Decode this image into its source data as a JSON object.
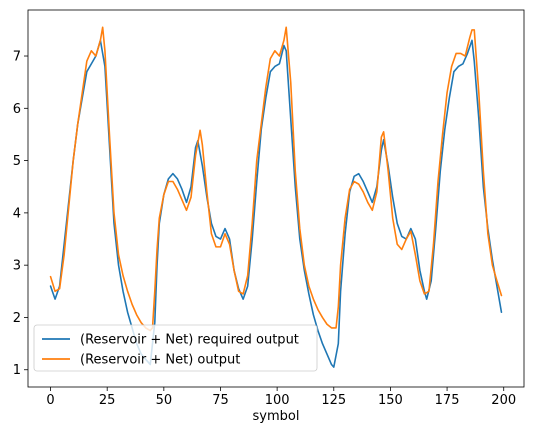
{
  "chart_data": {
    "type": "line",
    "title": "",
    "xlabel": "symbol",
    "ylabel": "",
    "xlim": [
      -9.95,
      208.95
    ],
    "ylim": [
      0.67,
      7.88
    ],
    "xticks": [
      0,
      25,
      50,
      75,
      100,
      125,
      150,
      175,
      200
    ],
    "yticks": [
      1,
      2,
      3,
      4,
      5,
      6,
      7
    ],
    "grid": false,
    "legend_position": "lower-left",
    "series": [
      {
        "name": "(Reservoir + Net) required output",
        "color": "#1f77b4",
        "points": [
          [
            0,
            2.6
          ],
          [
            2,
            2.35
          ],
          [
            4,
            2.6
          ],
          [
            6,
            3.4
          ],
          [
            8,
            4.2
          ],
          [
            10,
            5.0
          ],
          [
            12,
            5.7
          ],
          [
            14,
            6.2
          ],
          [
            16,
            6.7
          ],
          [
            18,
            6.85
          ],
          [
            20,
            7.0
          ],
          [
            22,
            7.3
          ],
          [
            24,
            6.8
          ],
          [
            26,
            5.3
          ],
          [
            28,
            3.8
          ],
          [
            30,
            3.0
          ],
          [
            32,
            2.5
          ],
          [
            34,
            2.1
          ],
          [
            36,
            1.8
          ],
          [
            38,
            1.5
          ],
          [
            40,
            1.3
          ],
          [
            42,
            1.2
          ],
          [
            44,
            1.1
          ],
          [
            46,
            1.9
          ],
          [
            47,
            3.0
          ],
          [
            48,
            3.8
          ],
          [
            50,
            4.35
          ],
          [
            52,
            4.65
          ],
          [
            54,
            4.75
          ],
          [
            56,
            4.65
          ],
          [
            58,
            4.45
          ],
          [
            60,
            4.2
          ],
          [
            62,
            4.5
          ],
          [
            64,
            5.25
          ],
          [
            65,
            5.38
          ],
          [
            67,
            4.9
          ],
          [
            69,
            4.3
          ],
          [
            71,
            3.8
          ],
          [
            73,
            3.55
          ],
          [
            75,
            3.5
          ],
          [
            77,
            3.7
          ],
          [
            79,
            3.5
          ],
          [
            81,
            2.9
          ],
          [
            83,
            2.55
          ],
          [
            85,
            2.35
          ],
          [
            87,
            2.6
          ],
          [
            89,
            3.5
          ],
          [
            91,
            4.6
          ],
          [
            93,
            5.6
          ],
          [
            95,
            6.2
          ],
          [
            97,
            6.7
          ],
          [
            99,
            6.8
          ],
          [
            101,
            6.85
          ],
          [
            103,
            7.2
          ],
          [
            104,
            7.1
          ],
          [
            106,
            5.8
          ],
          [
            108,
            4.5
          ],
          [
            110,
            3.5
          ],
          [
            112,
            2.9
          ],
          [
            114,
            2.45
          ],
          [
            116,
            2.05
          ],
          [
            118,
            1.75
          ],
          [
            120,
            1.5
          ],
          [
            122,
            1.3
          ],
          [
            124,
            1.1
          ],
          [
            125,
            1.05
          ],
          [
            127,
            1.5
          ],
          [
            128,
            2.5
          ],
          [
            130,
            3.6
          ],
          [
            132,
            4.4
          ],
          [
            134,
            4.7
          ],
          [
            136,
            4.75
          ],
          [
            138,
            4.6
          ],
          [
            140,
            4.4
          ],
          [
            142,
            4.2
          ],
          [
            144,
            4.5
          ],
          [
            146,
            5.2
          ],
          [
            147,
            5.4
          ],
          [
            149,
            4.9
          ],
          [
            151,
            4.3
          ],
          [
            153,
            3.8
          ],
          [
            155,
            3.55
          ],
          [
            157,
            3.5
          ],
          [
            159,
            3.7
          ],
          [
            161,
            3.5
          ],
          [
            163,
            2.9
          ],
          [
            165,
            2.5
          ],
          [
            166,
            2.35
          ],
          [
            168,
            2.7
          ],
          [
            170,
            3.7
          ],
          [
            172,
            4.8
          ],
          [
            174,
            5.6
          ],
          [
            176,
            6.2
          ],
          [
            178,
            6.7
          ],
          [
            180,
            6.8
          ],
          [
            182,
            6.85
          ],
          [
            184,
            7.05
          ],
          [
            186,
            7.3
          ],
          [
            187,
            6.9
          ],
          [
            189,
            5.8
          ],
          [
            191,
            4.5
          ],
          [
            193,
            3.7
          ],
          [
            195,
            3.1
          ],
          [
            197,
            2.6
          ],
          [
            199,
            2.1
          ]
        ]
      },
      {
        "name": "(Reservoir + Net) output",
        "color": "#ff7f0e",
        "points": [
          [
            0,
            2.78
          ],
          [
            2,
            2.5
          ],
          [
            4,
            2.55
          ],
          [
            6,
            3.2
          ],
          [
            8,
            4.1
          ],
          [
            10,
            5.0
          ],
          [
            12,
            5.7
          ],
          [
            14,
            6.3
          ],
          [
            16,
            6.9
          ],
          [
            18,
            7.1
          ],
          [
            20,
            7.0
          ],
          [
            22,
            7.3
          ],
          [
            23,
            7.55
          ],
          [
            24,
            7.1
          ],
          [
            26,
            5.5
          ],
          [
            28,
            4.0
          ],
          [
            30,
            3.2
          ],
          [
            32,
            2.8
          ],
          [
            34,
            2.5
          ],
          [
            36,
            2.25
          ],
          [
            38,
            2.05
          ],
          [
            40,
            1.9
          ],
          [
            42,
            1.8
          ],
          [
            44,
            1.75
          ],
          [
            45,
            1.8
          ],
          [
            46,
            2.5
          ],
          [
            47,
            3.3
          ],
          [
            48,
            3.9
          ],
          [
            50,
            4.35
          ],
          [
            52,
            4.6
          ],
          [
            54,
            4.6
          ],
          [
            56,
            4.45
          ],
          [
            58,
            4.25
          ],
          [
            60,
            4.05
          ],
          [
            62,
            4.3
          ],
          [
            64,
            5.1
          ],
          [
            66,
            5.58
          ],
          [
            67,
            5.3
          ],
          [
            69,
            4.4
          ],
          [
            71,
            3.6
          ],
          [
            73,
            3.35
          ],
          [
            75,
            3.35
          ],
          [
            77,
            3.6
          ],
          [
            79,
            3.4
          ],
          [
            81,
            2.9
          ],
          [
            83,
            2.5
          ],
          [
            85,
            2.45
          ],
          [
            87,
            2.8
          ],
          [
            89,
            3.8
          ],
          [
            91,
            5.0
          ],
          [
            93,
            5.7
          ],
          [
            95,
            6.4
          ],
          [
            97,
            6.95
          ],
          [
            99,
            7.1
          ],
          [
            101,
            7.0
          ],
          [
            103,
            7.3
          ],
          [
            104,
            7.55
          ],
          [
            106,
            6.5
          ],
          [
            108,
            4.8
          ],
          [
            110,
            3.7
          ],
          [
            112,
            3.0
          ],
          [
            114,
            2.6
          ],
          [
            116,
            2.35
          ],
          [
            118,
            2.15
          ],
          [
            120,
            2.0
          ],
          [
            122,
            1.87
          ],
          [
            124,
            1.8
          ],
          [
            126,
            1.8
          ],
          [
            127,
            2.2
          ],
          [
            128,
            3.0
          ],
          [
            130,
            3.9
          ],
          [
            132,
            4.45
          ],
          [
            134,
            4.6
          ],
          [
            136,
            4.55
          ],
          [
            138,
            4.4
          ],
          [
            140,
            4.2
          ],
          [
            142,
            4.05
          ],
          [
            144,
            4.4
          ],
          [
            146,
            5.45
          ],
          [
            147,
            5.55
          ],
          [
            149,
            4.8
          ],
          [
            151,
            3.9
          ],
          [
            153,
            3.4
          ],
          [
            155,
            3.3
          ],
          [
            157,
            3.5
          ],
          [
            159,
            3.65
          ],
          [
            161,
            3.2
          ],
          [
            163,
            2.7
          ],
          [
            165,
            2.45
          ],
          [
            167,
            2.5
          ],
          [
            169,
            3.4
          ],
          [
            171,
            4.6
          ],
          [
            173,
            5.5
          ],
          [
            175,
            6.3
          ],
          [
            177,
            6.8
          ],
          [
            179,
            7.05
          ],
          [
            181,
            7.05
          ],
          [
            183,
            7.0
          ],
          [
            185,
            7.35
          ],
          [
            186,
            7.5
          ],
          [
            187,
            7.5
          ],
          [
            189,
            6.3
          ],
          [
            191,
            4.8
          ],
          [
            193,
            3.6
          ],
          [
            195,
            3.0
          ],
          [
            197,
            2.7
          ],
          [
            199,
            2.42
          ]
        ]
      }
    ]
  }
}
